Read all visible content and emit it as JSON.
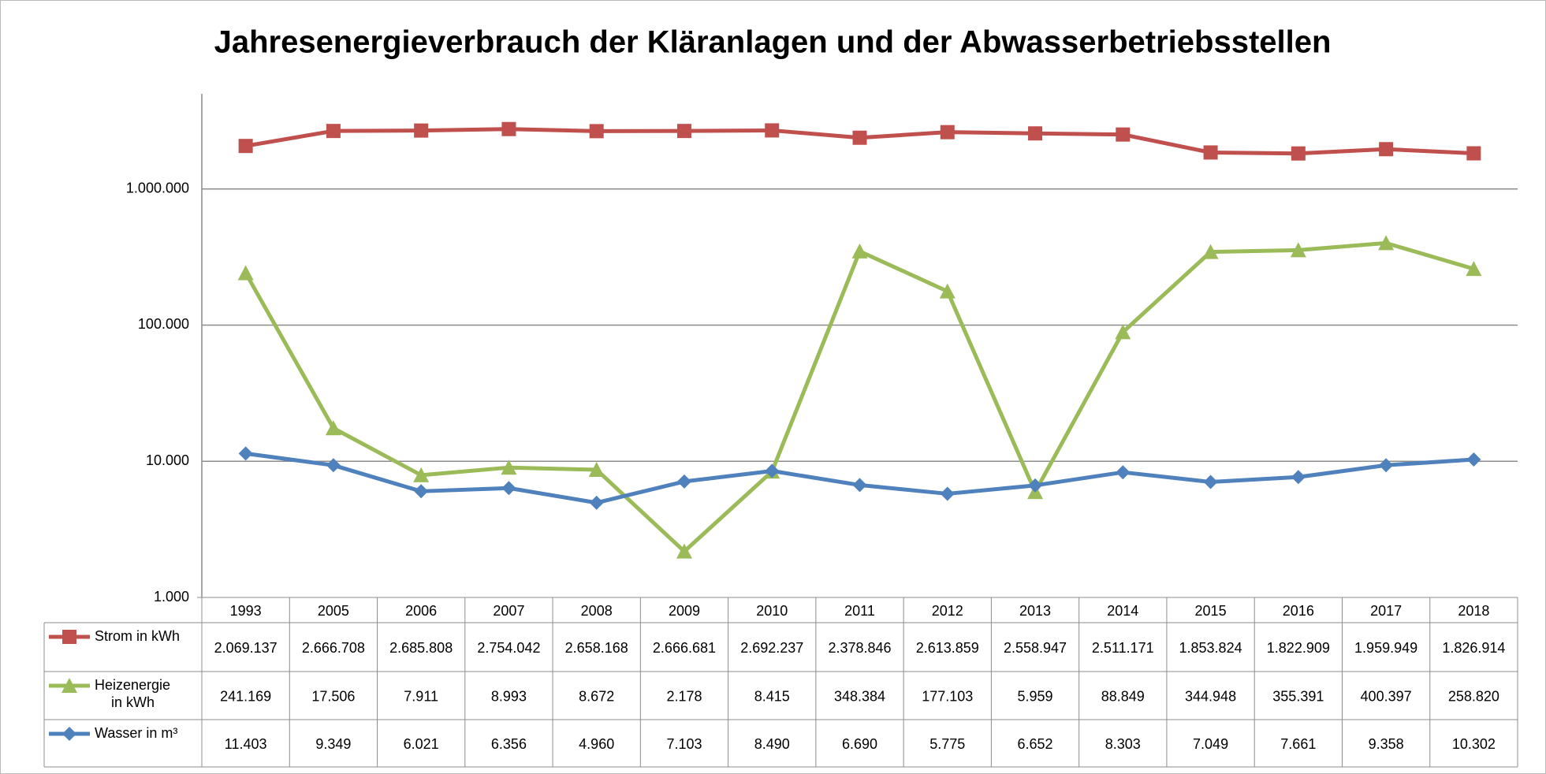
{
  "chart_data": {
    "type": "line",
    "title": "Jahresenergieverbrauch der Kläranlagen und der Abwasserbetriebsstellen",
    "categories": [
      "1993",
      "2005",
      "2006",
      "2007",
      "2008",
      "2009",
      "2010",
      "2011",
      "2012",
      "2013",
      "2014",
      "2015",
      "2016",
      "2017",
      "2018"
    ],
    "log_scale": true,
    "grid": true,
    "ylim": [
      1000,
      5000000
    ],
    "yticks": [
      {
        "value": 1000,
        "label": "1.000"
      },
      {
        "value": 10000,
        "label": "10.000"
      },
      {
        "value": 100000,
        "label": "100.000"
      },
      {
        "value": 1000000,
        "label": "1.000.000"
      }
    ],
    "series": [
      {
        "name": "Strom in kWh",
        "color": "#c0504d",
        "marker": "square",
        "values": [
          2069137,
          2666708,
          2685808,
          2754042,
          2658168,
          2666681,
          2692237,
          2378846,
          2613859,
          2558947,
          2511171,
          1853824,
          1822909,
          1959949,
          1826914
        ],
        "value_labels": [
          "2.069.137",
          "2.666.708",
          "2.685.808",
          "2.754.042",
          "2.658.168",
          "2.666.681",
          "2.692.237",
          "2.378.846",
          "2.613.859",
          "2.558.947",
          "2.511.171",
          "1.853.824",
          "1.822.909",
          "1.959.949",
          "1.826.914"
        ]
      },
      {
        "name": "Heizenergie in kWh",
        "color": "#9bbb59",
        "marker": "triangle",
        "values": [
          241169,
          17506,
          7911,
          8993,
          8672,
          2178,
          8415,
          348384,
          177103,
          5959,
          88849,
          344948,
          355391,
          400397,
          258820
        ],
        "value_labels": [
          "241.169",
          "17.506",
          "7.911",
          "8.993",
          "8.672",
          "2.178",
          "8.415",
          "348.384",
          "177.103",
          "5.959",
          "88.849",
          "344.948",
          "355.391",
          "400.397",
          "258.820"
        ]
      },
      {
        "name": "Wasser in m³",
        "color": "#4f81bd",
        "marker": "diamond",
        "values": [
          11403,
          9349,
          6021,
          6356,
          4960,
          7103,
          8490,
          6690,
          5775,
          6652,
          8303,
          7049,
          7661,
          9358,
          10302
        ],
        "value_labels": [
          "11.403",
          "9.349",
          "6.021",
          "6.356",
          "4.960",
          "7.103",
          "8.490",
          "6.690",
          "5.775",
          "6.652",
          "8.303",
          "7.049",
          "7.661",
          "9.358",
          "10.302"
        ]
      }
    ]
  }
}
